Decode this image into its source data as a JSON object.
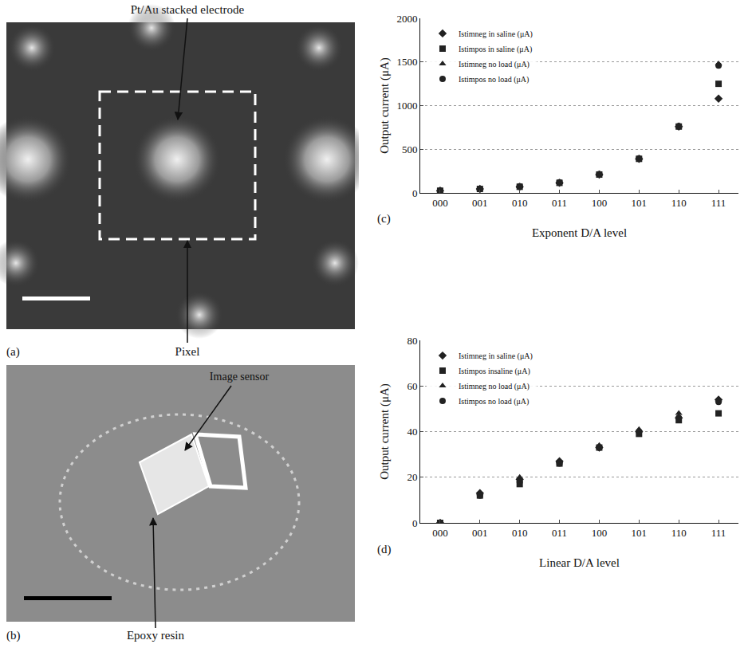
{
  "panels": [
    {
      "letter": "(a)",
      "labels": {
        "electrode": "Pt/Au stacked electrode",
        "pixel": "Pixel"
      }
    },
    {
      "letter": "(b)",
      "labels": {
        "sensor": "Image sensor",
        "resin": "Epoxy resin"
      }
    }
  ],
  "chart_data": [
    {
      "type": "scatter",
      "panel_label": "(c)",
      "x_label": "Exponent D/A level",
      "y_label": "Output current (μA)",
      "categories": [
        "000",
        "001",
        "010",
        "011",
        "100",
        "101",
        "110",
        "111"
      ],
      "series": [
        {
          "name": "Istimneg in saline (μA)",
          "color": "#222222",
          "marker": "diamond",
          "values": [
            25,
            45,
            70,
            115,
            210,
            390,
            760,
            1080
          ]
        },
        {
          "name": "Istimpos in saline (μA)",
          "color": "#222222",
          "marker": "square",
          "values": [
            25,
            45,
            70,
            115,
            210,
            390,
            760,
            1250
          ]
        },
        {
          "name": "Istimneg no load (μA)",
          "color": "#222222",
          "marker": "triangle-up",
          "values": [
            25,
            45,
            75,
            120,
            215,
            395,
            765,
            1480
          ]
        },
        {
          "name": "Istimpos no load (μA)",
          "color": "#222222",
          "marker": "circle",
          "values": [
            25,
            45,
            75,
            120,
            215,
            395,
            765,
            1460
          ]
        }
      ],
      "ylim": [
        0,
        2000
      ],
      "yticks": [
        0,
        500,
        1000,
        1500,
        2000
      ],
      "grid": true,
      "legend": "top-left"
    },
    {
      "type": "scatter",
      "panel_label": "(d)",
      "x_label": "Linear D/A level",
      "y_label": "Output current (μA)",
      "categories": [
        "000",
        "001",
        "010",
        "011",
        "100",
        "101",
        "110",
        "111"
      ],
      "series": [
        {
          "name": "Istimneg in saline (μA)",
          "color": "#222222",
          "marker": "diamond",
          "values": [
            0,
            13,
            19,
            27,
            33,
            40,
            46,
            54
          ]
        },
        {
          "name": "Istimpos insaline (μA)",
          "color": "#222222",
          "marker": "square",
          "values": [
            0,
            12,
            17,
            26,
            33,
            39,
            45,
            48
          ]
        },
        {
          "name": "Istimneg no load (μA)",
          "color": "#222222",
          "marker": "triangle-up",
          "values": [
            0,
            13,
            20,
            27,
            34,
            41,
            48,
            54
          ]
        },
        {
          "name": "Istimpos no load (μA)",
          "color": "#222222",
          "marker": "circle",
          "values": [
            0,
            12,
            18,
            26,
            33,
            40,
            46,
            53
          ]
        }
      ],
      "ylim": [
        0,
        80
      ],
      "yticks": [
        0,
        20,
        40,
        60,
        80
      ],
      "grid": true,
      "legend": "top-left"
    }
  ]
}
